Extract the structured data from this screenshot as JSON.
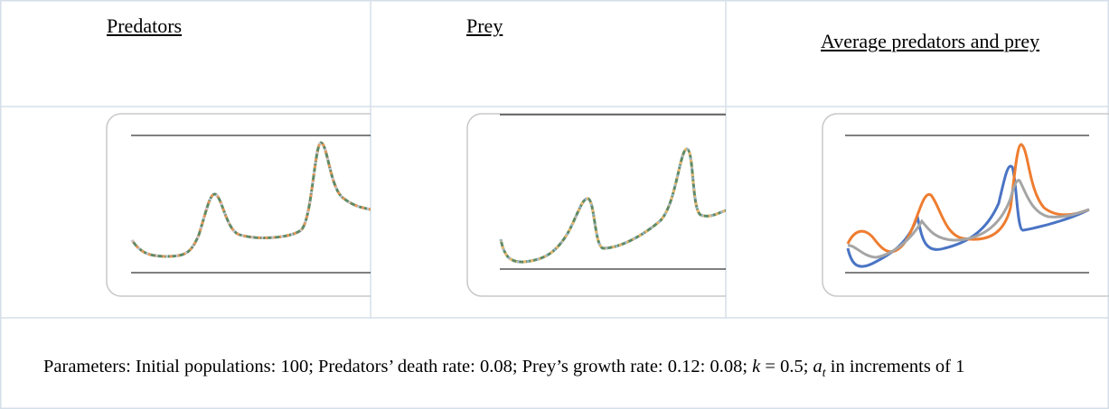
{
  "table": {
    "headers": [
      "Predators",
      "Prey",
      "Average predators and prey"
    ]
  },
  "caption": {
    "part1": "Parameters: Initial populations: 100; Predators’ death rate: 0.08; Prey’s growth rate: 0.12: 0.08; ",
    "k": "k",
    "part2": " = 0.5; ",
    "a": "a",
    "sub": "t",
    "part3": " in increments of 1"
  }
}
